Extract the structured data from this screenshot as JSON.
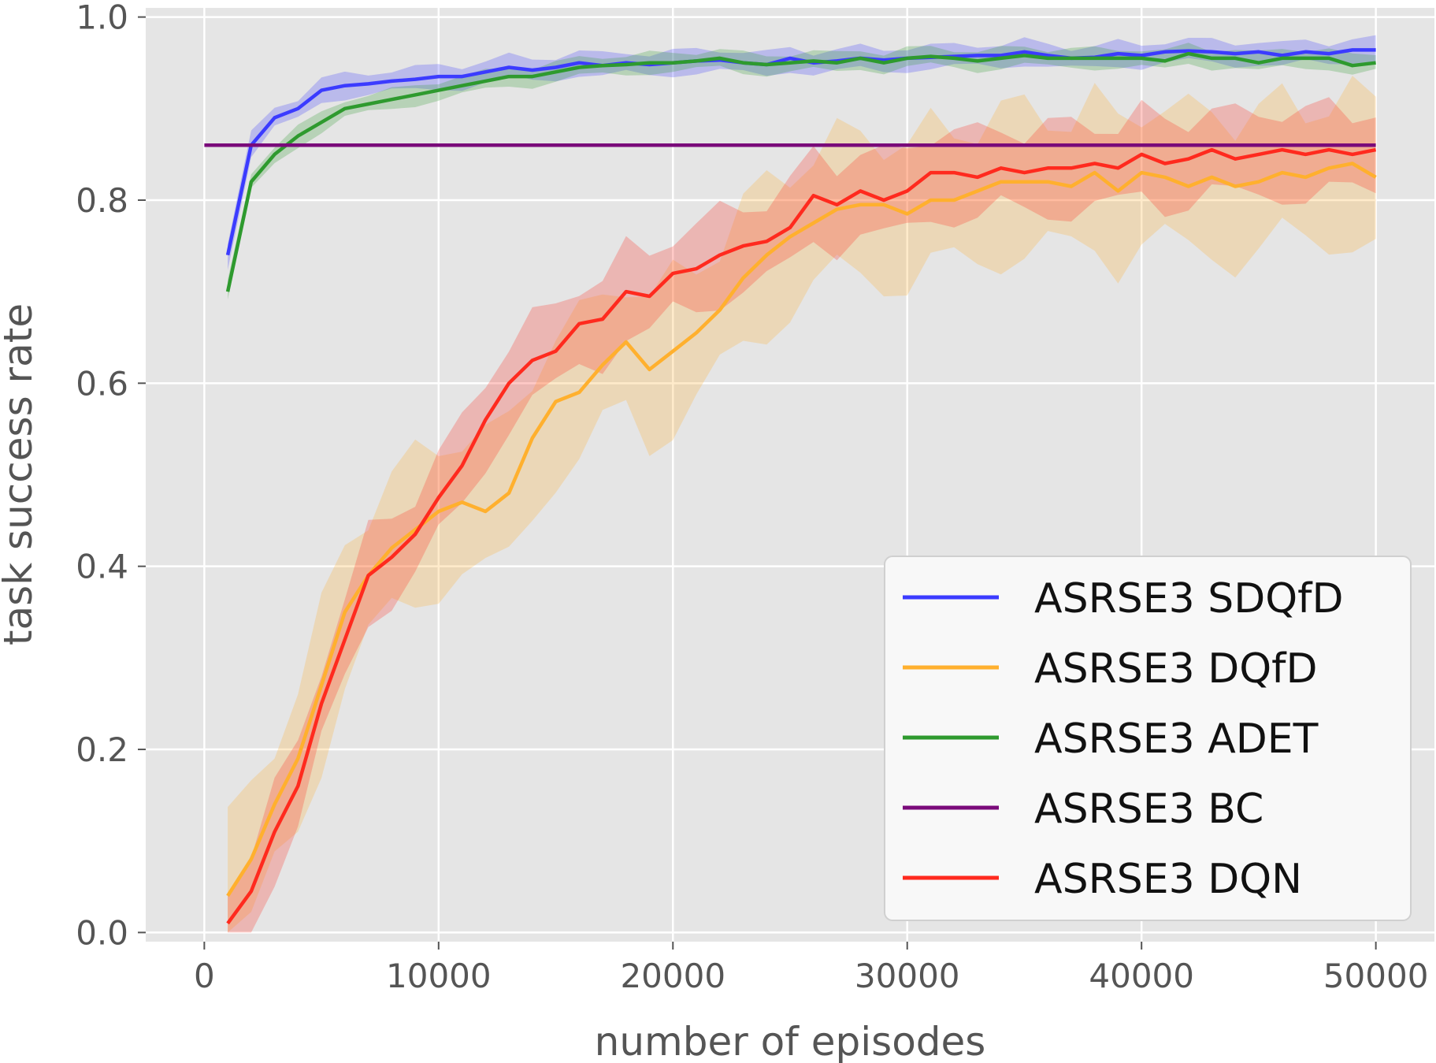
{
  "chart_data": {
    "type": "line",
    "title": "",
    "xlabel": "number of episodes",
    "ylabel": "task success rate",
    "xlim": [
      -2500,
      52500
    ],
    "ylim": [
      -0.01,
      1.01
    ],
    "xticks": [
      0,
      10000,
      20000,
      30000,
      40000,
      50000
    ],
    "xtick_labels": [
      "0",
      "10000",
      "20000",
      "30000",
      "40000",
      "50000"
    ],
    "yticks": [
      0.0,
      0.2,
      0.4,
      0.6,
      0.8,
      1.0
    ],
    "ytick_labels": [
      "0.0",
      "0.2",
      "0.4",
      "0.6",
      "0.8",
      "1.0"
    ],
    "grid": true,
    "legend_position": "lower-right",
    "x": [
      1000,
      2000,
      3000,
      4000,
      5000,
      6000,
      7000,
      8000,
      9000,
      10000,
      11000,
      12000,
      13000,
      14000,
      15000,
      16000,
      17000,
      18000,
      19000,
      20000,
      21000,
      22000,
      23000,
      24000,
      25000,
      26000,
      27000,
      28000,
      29000,
      30000,
      31000,
      32000,
      33000,
      34000,
      35000,
      36000,
      37000,
      38000,
      39000,
      40000,
      41000,
      42000,
      43000,
      44000,
      45000,
      46000,
      47000,
      48000,
      49000,
      50000
    ],
    "series": [
      {
        "name": "ASRSE3 SDQfD",
        "color": "#3b3bff",
        "values": [
          0.74,
          0.86,
          0.89,
          0.9,
          0.92,
          0.925,
          0.927,
          0.93,
          0.932,
          0.935,
          0.935,
          0.94,
          0.945,
          0.942,
          0.945,
          0.95,
          0.947,
          0.95,
          0.948,
          0.95,
          0.952,
          0.953,
          0.95,
          0.948,
          0.955,
          0.95,
          0.952,
          0.955,
          0.953,
          0.955,
          0.956,
          0.957,
          0.958,
          0.958,
          0.962,
          0.958,
          0.955,
          0.956,
          0.96,
          0.958,
          0.962,
          0.963,
          0.962,
          0.96,
          0.962,
          0.958,
          0.962,
          0.96,
          0.964,
          0.964
        ],
        "band": 0.012
      },
      {
        "name": "ASRSE3 DQfD",
        "color": "#ffb02e",
        "values": [
          0.04,
          0.08,
          0.14,
          0.19,
          0.27,
          0.35,
          0.39,
          0.42,
          0.44,
          0.46,
          0.47,
          0.46,
          0.48,
          0.54,
          0.58,
          0.59,
          0.62,
          0.645,
          0.615,
          0.635,
          0.655,
          0.68,
          0.715,
          0.74,
          0.76,
          0.775,
          0.79,
          0.795,
          0.795,
          0.785,
          0.8,
          0.8,
          0.81,
          0.82,
          0.82,
          0.82,
          0.815,
          0.83,
          0.81,
          0.83,
          0.825,
          0.815,
          0.825,
          0.815,
          0.82,
          0.83,
          0.825,
          0.835,
          0.84,
          0.825
        ],
        "band": 0.075
      },
      {
        "name": "ASRSE3 ADET",
        "color": "#2e9a2e",
        "values": [
          0.7,
          0.82,
          0.85,
          0.87,
          0.885,
          0.9,
          0.905,
          0.91,
          0.915,
          0.92,
          0.925,
          0.93,
          0.935,
          0.935,
          0.94,
          0.945,
          0.947,
          0.948,
          0.95,
          0.95,
          0.952,
          0.955,
          0.95,
          0.948,
          0.95,
          0.952,
          0.95,
          0.955,
          0.95,
          0.955,
          0.957,
          0.955,
          0.952,
          0.955,
          0.958,
          0.955,
          0.955,
          0.955,
          0.955,
          0.955,
          0.952,
          0.96,
          0.955,
          0.955,
          0.95,
          0.955,
          0.955,
          0.955,
          0.947,
          0.95
        ],
        "band": 0.01
      },
      {
        "name": "ASRSE3 BC",
        "color": "#7a0a7a",
        "x": [
          0,
          50000
        ],
        "values": [
          0.86,
          0.86
        ],
        "band": 0
      },
      {
        "name": "ASRSE3 DQN",
        "color": "#ff2a1e",
        "values": [
          0.01,
          0.045,
          0.11,
          0.16,
          0.25,
          0.32,
          0.39,
          0.41,
          0.435,
          0.475,
          0.51,
          0.56,
          0.6,
          0.625,
          0.635,
          0.665,
          0.67,
          0.7,
          0.695,
          0.72,
          0.725,
          0.74,
          0.75,
          0.755,
          0.77,
          0.805,
          0.795,
          0.81,
          0.8,
          0.81,
          0.83,
          0.83,
          0.825,
          0.835,
          0.83,
          0.835,
          0.835,
          0.84,
          0.835,
          0.85,
          0.84,
          0.845,
          0.855,
          0.845,
          0.85,
          0.855,
          0.85,
          0.855,
          0.85,
          0.855
        ],
        "band": 0.045
      }
    ]
  }
}
